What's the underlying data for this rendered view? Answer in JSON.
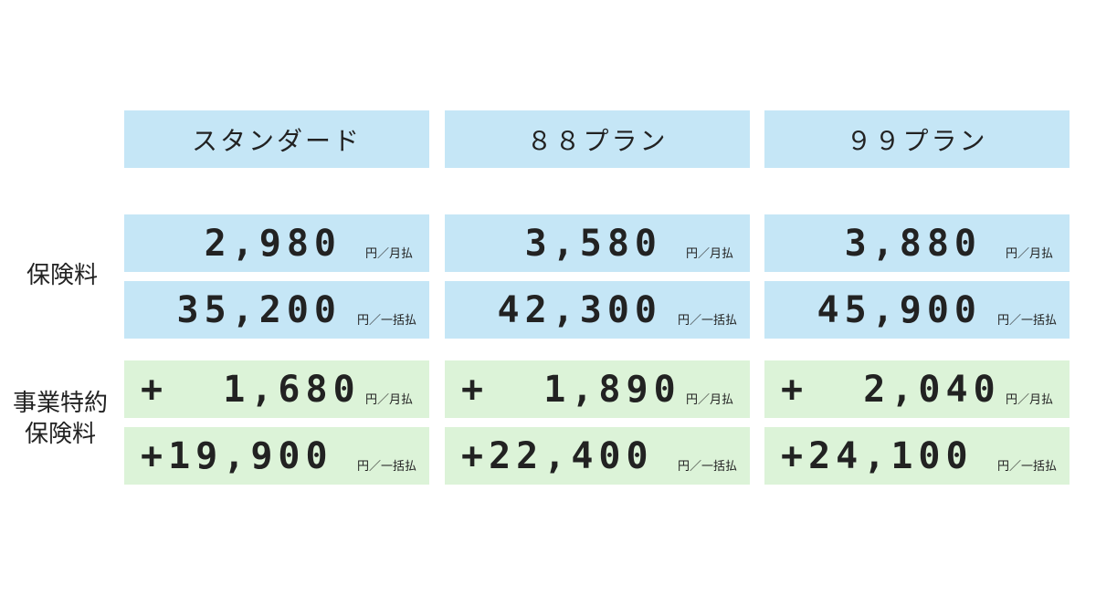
{
  "plans": [
    {
      "name": "スタンダード",
      "premium_monthly": "2,980",
      "premium_lump": "35,200",
      "rider_monthly": "+  1,680",
      "rider_lump": "+19,900"
    },
    {
      "name": "８８プラン",
      "premium_monthly": "3,580",
      "premium_lump": "42,300",
      "rider_monthly": "+  1,890",
      "rider_lump": "+22,400"
    },
    {
      "name": "９９プラン",
      "premium_monthly": "3,880",
      "premium_lump": "45,900",
      "rider_monthly": "+  2,040",
      "rider_lump": "+24,100"
    }
  ],
  "row_labels": {
    "premium": "保険料",
    "rider_line1": "事業特約",
    "rider_line2": "保険料"
  },
  "units": {
    "monthly": "円／月払",
    "lump": "円／一括払"
  },
  "colors": {
    "premium_bg": "#c5e6f6",
    "rider_bg": "#dcf3d8"
  }
}
